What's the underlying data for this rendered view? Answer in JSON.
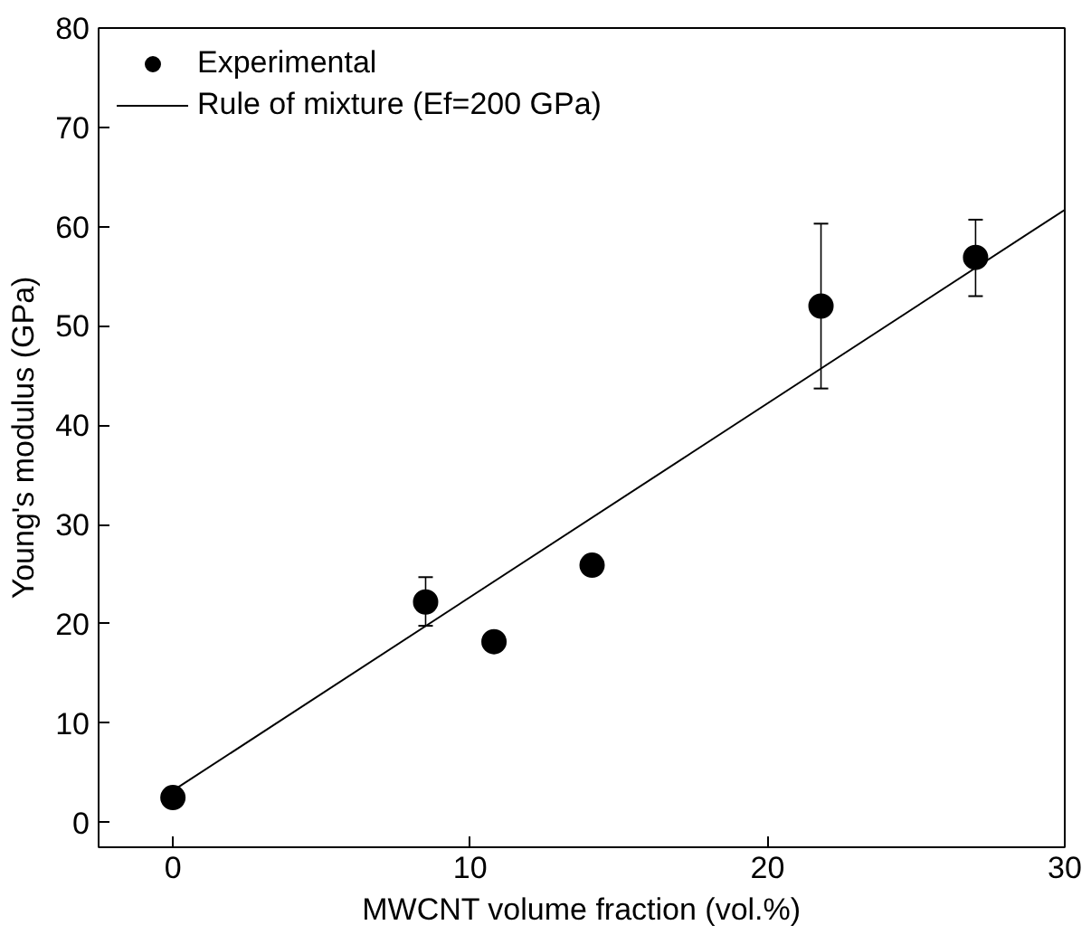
{
  "chart_data": {
    "type": "scatter",
    "xlabel": "MWCNT volume fraction (vol.%)",
    "ylabel": "Young's modulus (GPa)",
    "xlim": [
      -2.5,
      30
    ],
    "ylim": [
      -2.5,
      80
    ],
    "xticks": [
      0,
      10,
      20,
      30
    ],
    "yticks": [
      0,
      10,
      20,
      30,
      40,
      50,
      60,
      70,
      80
    ],
    "grid": false,
    "legend": "top left",
    "series": [
      {
        "name": "Experimental",
        "marker": "circle",
        "color": "#000000",
        "x": [
          0,
          8.5,
          10.8,
          14.1,
          21.8,
          27
        ],
        "values": [
          2.5,
          22.2,
          18.2,
          25.9,
          52,
          56.9
        ],
        "errors": [
          null,
          [
            19.8,
            24.7
          ],
          null,
          null,
          [
            43.7,
            60.3
          ],
          [
            53,
            60.7
          ]
        ]
      },
      {
        "name": "Rule of mixture (Ef=200 GPa)",
        "type": "line",
        "marker": "none",
        "line_style": "solid",
        "color": "#000000",
        "x": [
          0,
          30
        ],
        "values": [
          3.2,
          61.7
        ]
      }
    ]
  }
}
